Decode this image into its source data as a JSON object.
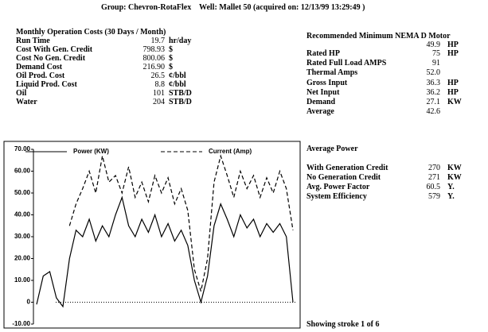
{
  "header": {
    "group": "Group: Chevron-RotaFlex",
    "well": "Well: Mallet 50 (acquired on: 12/13/99 13:29:49 )"
  },
  "costs": {
    "title": "Monthly Operation Costs (30 Days / Month)",
    "rows": [
      [
        "Run Time",
        "19.7",
        "hr/day"
      ],
      [
        "Cost With Gen. Credit",
        "798.93",
        "$"
      ],
      [
        "Cost No Gen. Credit",
        "800.06",
        "$"
      ],
      [
        "Demand Cost",
        "216.90",
        "$"
      ],
      [
        "Oil Prod. Cost",
        "26.5",
        "¢/bbl"
      ],
      [
        "Liquid Prod. Cost",
        "8.8",
        "¢/bbl"
      ],
      [
        "Oil",
        "101",
        "STB/D"
      ],
      [
        "Water",
        "204",
        "STB/D"
      ]
    ]
  },
  "motor": {
    "title": "Recommended Minimum NEMA D Motor",
    "title_value": "49.9",
    "title_unit": "HP",
    "rows": [
      [
        "Rated HP",
        "75",
        "HP"
      ],
      [
        "Rated Full Load AMPS",
        "91",
        ""
      ],
      [
        "Thermal Amps",
        "52.0",
        ""
      ],
      [
        "Gross Input",
        "36.3",
        "HP"
      ],
      [
        "Net Input",
        "36.2",
        "HP"
      ],
      [
        "Demand",
        "27.1",
        "KW"
      ],
      [
        "Average",
        "42.6",
        ""
      ]
    ]
  },
  "power": {
    "title": "Average Power",
    "rows": [
      [
        "With Generation Credit",
        "270",
        "KW"
      ],
      [
        "No Generation Credit",
        "271",
        "KW"
      ],
      [
        "Avg. Power Factor",
        "60.5",
        "Y."
      ],
      [
        "System Efficiency",
        "579",
        "Y."
      ]
    ]
  },
  "footer": "Showing stroke 1 of 6",
  "chart_data": {
    "type": "line",
    "ylim": [
      -10,
      70
    ],
    "yticks": [
      {
        "value": -10,
        "label": "-10.00"
      },
      0,
      {
        "value": 10,
        "label": "10.00"
      },
      {
        "value": 20,
        "label": "20.00"
      },
      {
        "value": 30,
        "label": "30.00"
      },
      {
        "value": 40,
        "label": "40.00"
      },
      {
        "value": 50,
        "label": "50.00"
      },
      {
        "value": 60,
        "label": "60.00"
      },
      {
        "value": 70,
        "label": "70.00"
      }
    ],
    "series": [
      {
        "name": "Power (KW)",
        "color": "#000000",
        "dash": false,
        "values": [
          -1,
          12,
          14,
          2,
          -2,
          20,
          33,
          30,
          38,
          28,
          35,
          30,
          40,
          48,
          35,
          30,
          38,
          32,
          40,
          30,
          36,
          28,
          33,
          26,
          10,
          0,
          12,
          35,
          45,
          38,
          30,
          40,
          34,
          38,
          30,
          36,
          32,
          36,
          30,
          0
        ]
      },
      {
        "name": "Current (Amp)",
        "color": "#000000",
        "dash": true,
        "values": [
          null,
          null,
          null,
          null,
          null,
          35,
          45,
          52,
          60,
          50,
          67,
          55,
          58,
          50,
          62,
          48,
          55,
          46,
          58,
          50,
          57,
          45,
          52,
          42,
          15,
          5,
          20,
          55,
          67,
          58,
          48,
          60,
          52,
          58,
          48,
          57,
          50,
          60,
          52,
          33
        ]
      }
    ]
  }
}
